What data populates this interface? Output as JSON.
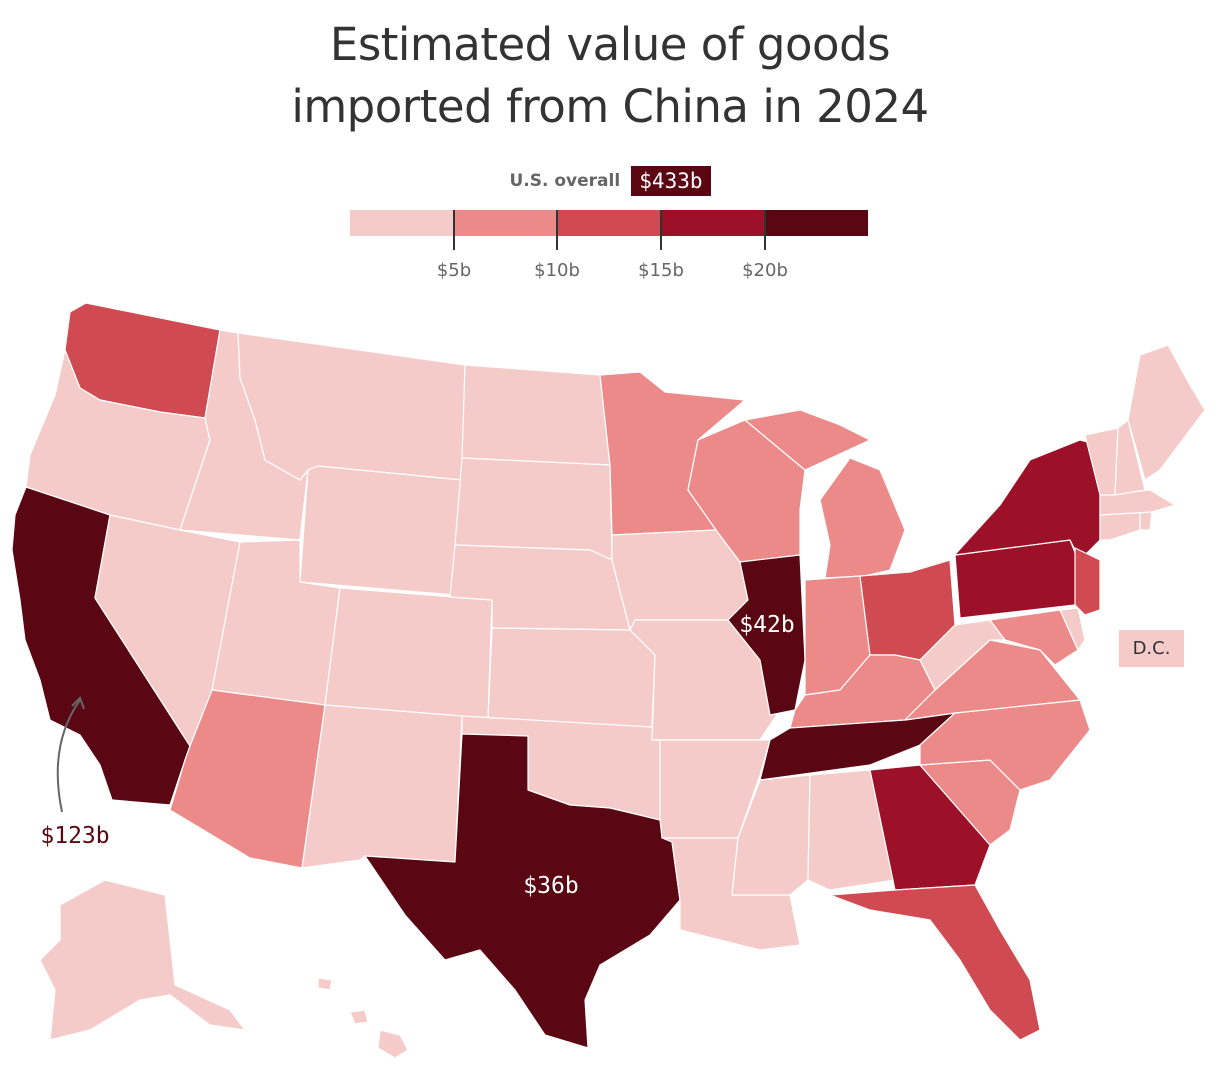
{
  "title": {
    "line1": "Estimated value of goods",
    "line2": "imported from China in 2024"
  },
  "overall": {
    "label": "U.S. overall",
    "value": "$433b"
  },
  "legend": {
    "bins": [
      "#f5cbca",
      "#ec8a89",
      "#cf4b51",
      "#9c1128",
      "#5a0713"
    ],
    "ticks": [
      {
        "value": 5,
        "label": "$5b"
      },
      {
        "value": 10,
        "label": "$10b"
      },
      {
        "value": 15,
        "label": "$15b"
      },
      {
        "value": 20,
        "label": "$20b"
      }
    ]
  },
  "dc_label": "D.C.",
  "callouts": {
    "california": "$123b",
    "illinois": "$42b",
    "texas": "$36b"
  },
  "chart_data": {
    "type": "choropleth",
    "title": "Estimated value of goods imported from China in 2024",
    "us_overall_billions": 433,
    "scale_breaks_billions": [
      5,
      10,
      15,
      20
    ],
    "labeled_values": [
      {
        "state": "California",
        "value": "$123b"
      },
      {
        "state": "Illinois",
        "value": "$42b"
      },
      {
        "state": "Texas",
        "value": "$36b"
      }
    ],
    "bin_by_state": {
      "California": 4,
      "Texas": 4,
      "Illinois": 4,
      "Tennessee": 4,
      "New York": 3,
      "Pennsylvania": 3,
      "Georgia": 3,
      "Washington": 2,
      "Ohio": 2,
      "Florida": 2,
      "New Jersey": 2,
      "Minnesota": 1,
      "Wisconsin": 1,
      "Michigan": 1,
      "Indiana": 1,
      "Kentucky": 1,
      "Virginia": 1,
      "North Carolina": 1,
      "South Carolina": 1,
      "Arizona": 1,
      "Maryland": 1,
      "Oregon": 0,
      "Idaho": 0,
      "Montana": 0,
      "Wyoming": 0,
      "Nevada": 0,
      "Utah": 0,
      "Colorado": 0,
      "New Mexico": 0,
      "North Dakota": 0,
      "South Dakota": 0,
      "Nebraska": 0,
      "Kansas": 0,
      "Oklahoma": 0,
      "Iowa": 0,
      "Missouri": 0,
      "Arkansas": 0,
      "Louisiana": 0,
      "Mississippi": 0,
      "Alabama": 0,
      "West Virginia": 0,
      "Delaware": 0,
      "Connecticut": 0,
      "Rhode Island": 0,
      "Massachusetts": 0,
      "Vermont": 0,
      "New Hampshire": 0,
      "Maine": 0,
      "Alaska": 0,
      "Hawaii": 0,
      "District of Columbia": 0
    }
  }
}
